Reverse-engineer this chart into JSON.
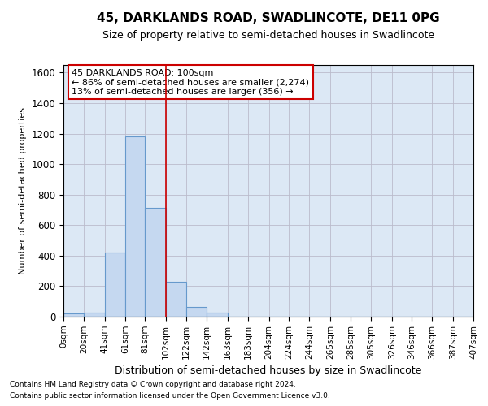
{
  "title": "45, DARKLANDS ROAD, SWADLINCOTE, DE11 0PG",
  "subtitle": "Size of property relative to semi-detached houses in Swadlincote",
  "xlabel": "Distribution of semi-detached houses by size in Swadlincote",
  "ylabel": "Number of semi-detached properties",
  "footnote1": "Contains HM Land Registry data © Crown copyright and database right 2024.",
  "footnote2": "Contains public sector information licensed under the Open Government Licence v3.0.",
  "annotation_line1": "45 DARKLANDS ROAD: 100sqm",
  "annotation_line2": "← 86% of semi-detached houses are smaller (2,274)",
  "annotation_line3": "13% of semi-detached houses are larger (356) →",
  "bin_edges": [
    0,
    20.5,
    41,
    61.5,
    81,
    102,
    122,
    142,
    163,
    183,
    204,
    224,
    244,
    265,
    285,
    305,
    326,
    346,
    366,
    387,
    407
  ],
  "bar_heights": [
    20,
    25,
    420,
    1180,
    715,
    230,
    65,
    25,
    0,
    0,
    0,
    0,
    0,
    0,
    0,
    0,
    0,
    0,
    0,
    0
  ],
  "bar_color": "#c5d8f0",
  "bar_edge_color": "#6699cc",
  "vline_color": "#cc0000",
  "vline_x": 102,
  "ylim": [
    0,
    1650
  ],
  "yticks": [
    0,
    200,
    400,
    600,
    800,
    1000,
    1200,
    1400,
    1600
  ],
  "xtick_labels": [
    "0sqm",
    "20sqm",
    "41sqm",
    "61sqm",
    "81sqm",
    "102sqm",
    "122sqm",
    "142sqm",
    "163sqm",
    "183sqm",
    "204sqm",
    "224sqm",
    "244sqm",
    "265sqm",
    "285sqm",
    "305sqm",
    "326sqm",
    "346sqm",
    "366sqm",
    "387sqm",
    "407sqm"
  ],
  "grid_color": "#bbbbcc",
  "bg_color": "#dce8f5",
  "annotation_box_color": "#ffffff",
  "annotation_box_edge": "#cc0000",
  "title_fontsize": 11,
  "subtitle_fontsize": 9
}
